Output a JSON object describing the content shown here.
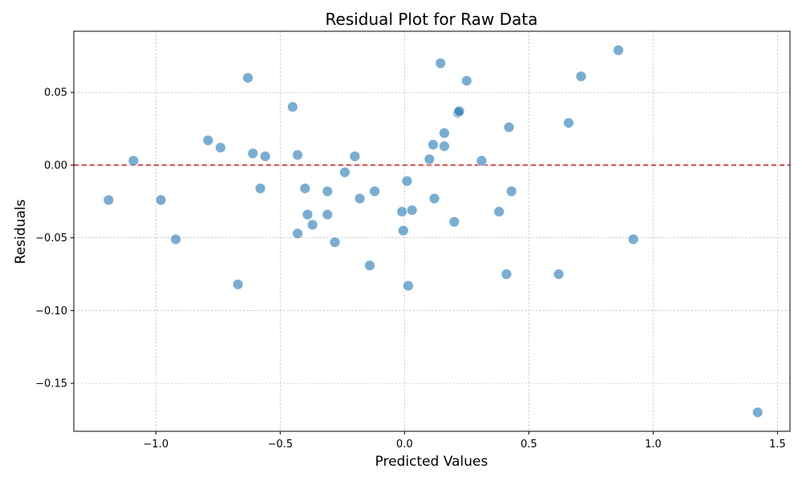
{
  "chart_data": {
    "type": "scatter",
    "title": "Residual Plot for Raw Data",
    "xlabel": "Predicted Values",
    "ylabel": "Residuals",
    "xlim": [
      -1.33,
      1.55
    ],
    "ylim": [
      -0.183,
      0.092
    ],
    "x_ticks": [
      -1.0,
      -0.5,
      0.0,
      0.5,
      1.0,
      1.5
    ],
    "x_tick_labels": [
      "−1.0",
      "−0.5",
      "0.0",
      "0.5",
      "1.0",
      "1.5"
    ],
    "y_ticks": [
      0.05,
      0.0,
      -0.05,
      -0.1,
      -0.15
    ],
    "y_tick_labels": [
      "0.05",
      "0.00",
      "−0.05",
      "−0.10",
      "−0.15"
    ],
    "grid": true,
    "point_color": "#1f77b4",
    "reference_line": {
      "y": 0.0,
      "color": "#d62728",
      "style": "dashed"
    },
    "points": [
      {
        "x": -1.19,
        "y": -0.024
      },
      {
        "x": -1.09,
        "y": 0.003
      },
      {
        "x": -0.98,
        "y": -0.024
      },
      {
        "x": -0.92,
        "y": -0.051
      },
      {
        "x": -0.79,
        "y": 0.017
      },
      {
        "x": -0.74,
        "y": 0.012
      },
      {
        "x": -0.67,
        "y": -0.082
      },
      {
        "x": -0.63,
        "y": 0.06
      },
      {
        "x": -0.61,
        "y": 0.008
      },
      {
        "x": -0.58,
        "y": -0.016
      },
      {
        "x": -0.56,
        "y": 0.006
      },
      {
        "x": -0.45,
        "y": 0.04
      },
      {
        "x": -0.43,
        "y": 0.007
      },
      {
        "x": -0.43,
        "y": -0.047
      },
      {
        "x": -0.4,
        "y": -0.016
      },
      {
        "x": -0.39,
        "y": -0.034
      },
      {
        "x": -0.37,
        "y": -0.041
      },
      {
        "x": -0.31,
        "y": -0.018
      },
      {
        "x": -0.31,
        "y": -0.034
      },
      {
        "x": -0.28,
        "y": -0.053
      },
      {
        "x": -0.24,
        "y": -0.005
      },
      {
        "x": -0.2,
        "y": 0.006
      },
      {
        "x": -0.18,
        "y": -0.023
      },
      {
        "x": -0.14,
        "y": -0.069
      },
      {
        "x": -0.12,
        "y": -0.018
      },
      {
        "x": -0.01,
        "y": -0.032
      },
      {
        "x": -0.005,
        "y": -0.045
      },
      {
        "x": 0.01,
        "y": -0.011
      },
      {
        "x": 0.015,
        "y": -0.083
      },
      {
        "x": 0.03,
        "y": -0.031
      },
      {
        "x": 0.1,
        "y": 0.004
      },
      {
        "x": 0.115,
        "y": 0.014
      },
      {
        "x": 0.12,
        "y": -0.023
      },
      {
        "x": 0.145,
        "y": 0.07
      },
      {
        "x": 0.16,
        "y": 0.022
      },
      {
        "x": 0.16,
        "y": 0.013
      },
      {
        "x": 0.2,
        "y": -0.039
      },
      {
        "x": 0.215,
        "y": 0.036
      },
      {
        "x": 0.22,
        "y": 0.037
      },
      {
        "x": 0.25,
        "y": 0.058
      },
      {
        "x": 0.31,
        "y": 0.003
      },
      {
        "x": 0.38,
        "y": -0.032
      },
      {
        "x": 0.41,
        "y": -0.075
      },
      {
        "x": 0.42,
        "y": 0.026
      },
      {
        "x": 0.43,
        "y": -0.018
      },
      {
        "x": 0.62,
        "y": -0.075
      },
      {
        "x": 0.66,
        "y": 0.029
      },
      {
        "x": 0.71,
        "y": 0.061
      },
      {
        "x": 0.86,
        "y": 0.079
      },
      {
        "x": 0.92,
        "y": -0.051
      },
      {
        "x": 1.42,
        "y": -0.17
      }
    ]
  }
}
